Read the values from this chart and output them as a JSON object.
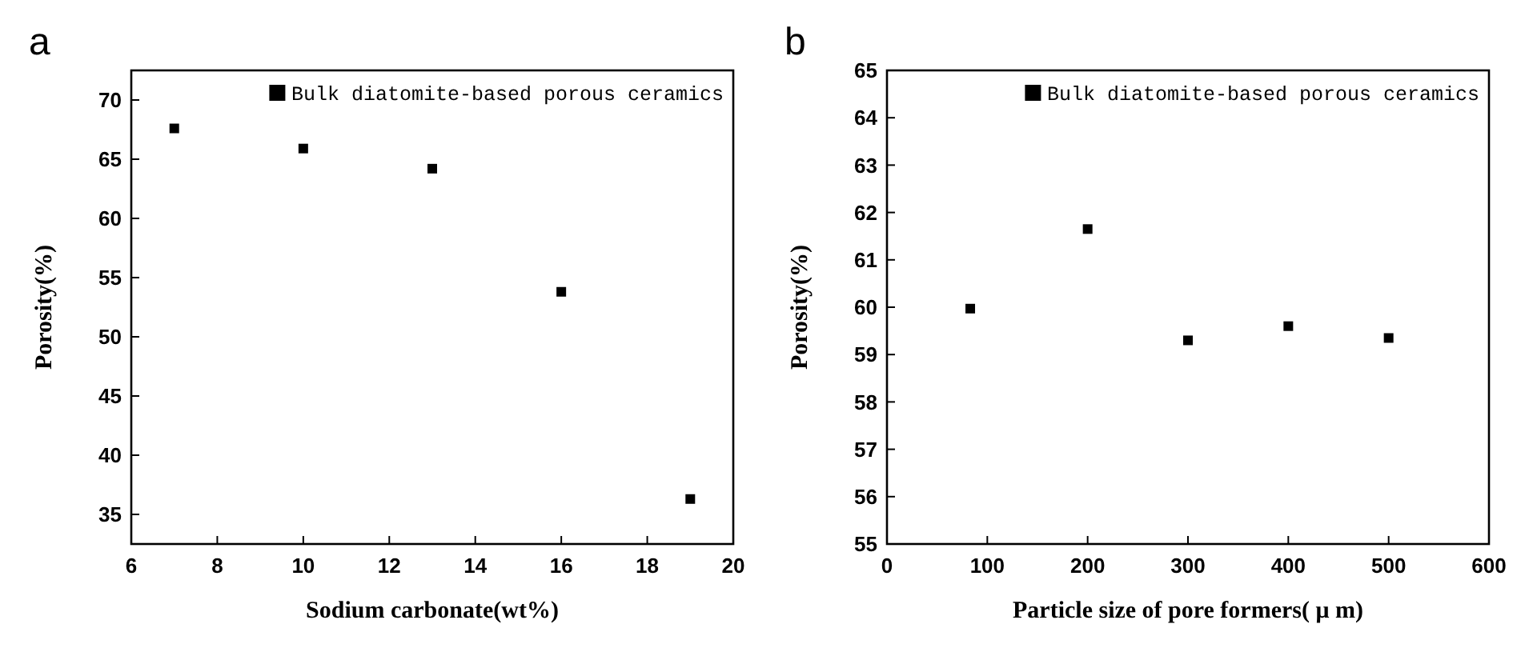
{
  "chart_data": [
    {
      "type": "scatter",
      "title": "a",
      "xlabel": "Sodium carbonate(wt%)",
      "ylabel": "Porosity(%)",
      "x": [
        7,
        10,
        13,
        16,
        19
      ],
      "xlim": [
        6,
        20
      ],
      "xticks": [
        6,
        8,
        10,
        12,
        14,
        16,
        18,
        20
      ],
      "ylim": [
        32.5,
        72.5
      ],
      "yticks": [
        35,
        40,
        45,
        50,
        55,
        60,
        65,
        70
      ],
      "marker": "square",
      "grid": false,
      "legend": "top right",
      "series": [
        {
          "name": "Bulk diatomite-based porous ceramics",
          "color": "#000000",
          "values": [
            67.6,
            65.9,
            64.2,
            53.8,
            36.3
          ]
        }
      ]
    },
    {
      "type": "scatter",
      "title": "b",
      "xlabel": "Particle size of pore formers( μ m)",
      "ylabel": "Porosity(%)",
      "x": [
        83,
        200,
        300,
        400,
        500
      ],
      "xlim": [
        0,
        600
      ],
      "xticks": [
        0,
        100,
        200,
        300,
        400,
        500,
        600
      ],
      "ylim": [
        55,
        65
      ],
      "yticks": [
        55,
        56,
        57,
        58,
        59,
        60,
        61,
        62,
        63,
        64,
        65
      ],
      "marker": "square",
      "grid": false,
      "legend": "top right",
      "series": [
        {
          "name": "Bulk diatomite-based porous ceramics",
          "color": "#000000",
          "values": [
            59.97,
            61.65,
            59.3,
            59.6,
            59.35
          ]
        }
      ]
    }
  ]
}
